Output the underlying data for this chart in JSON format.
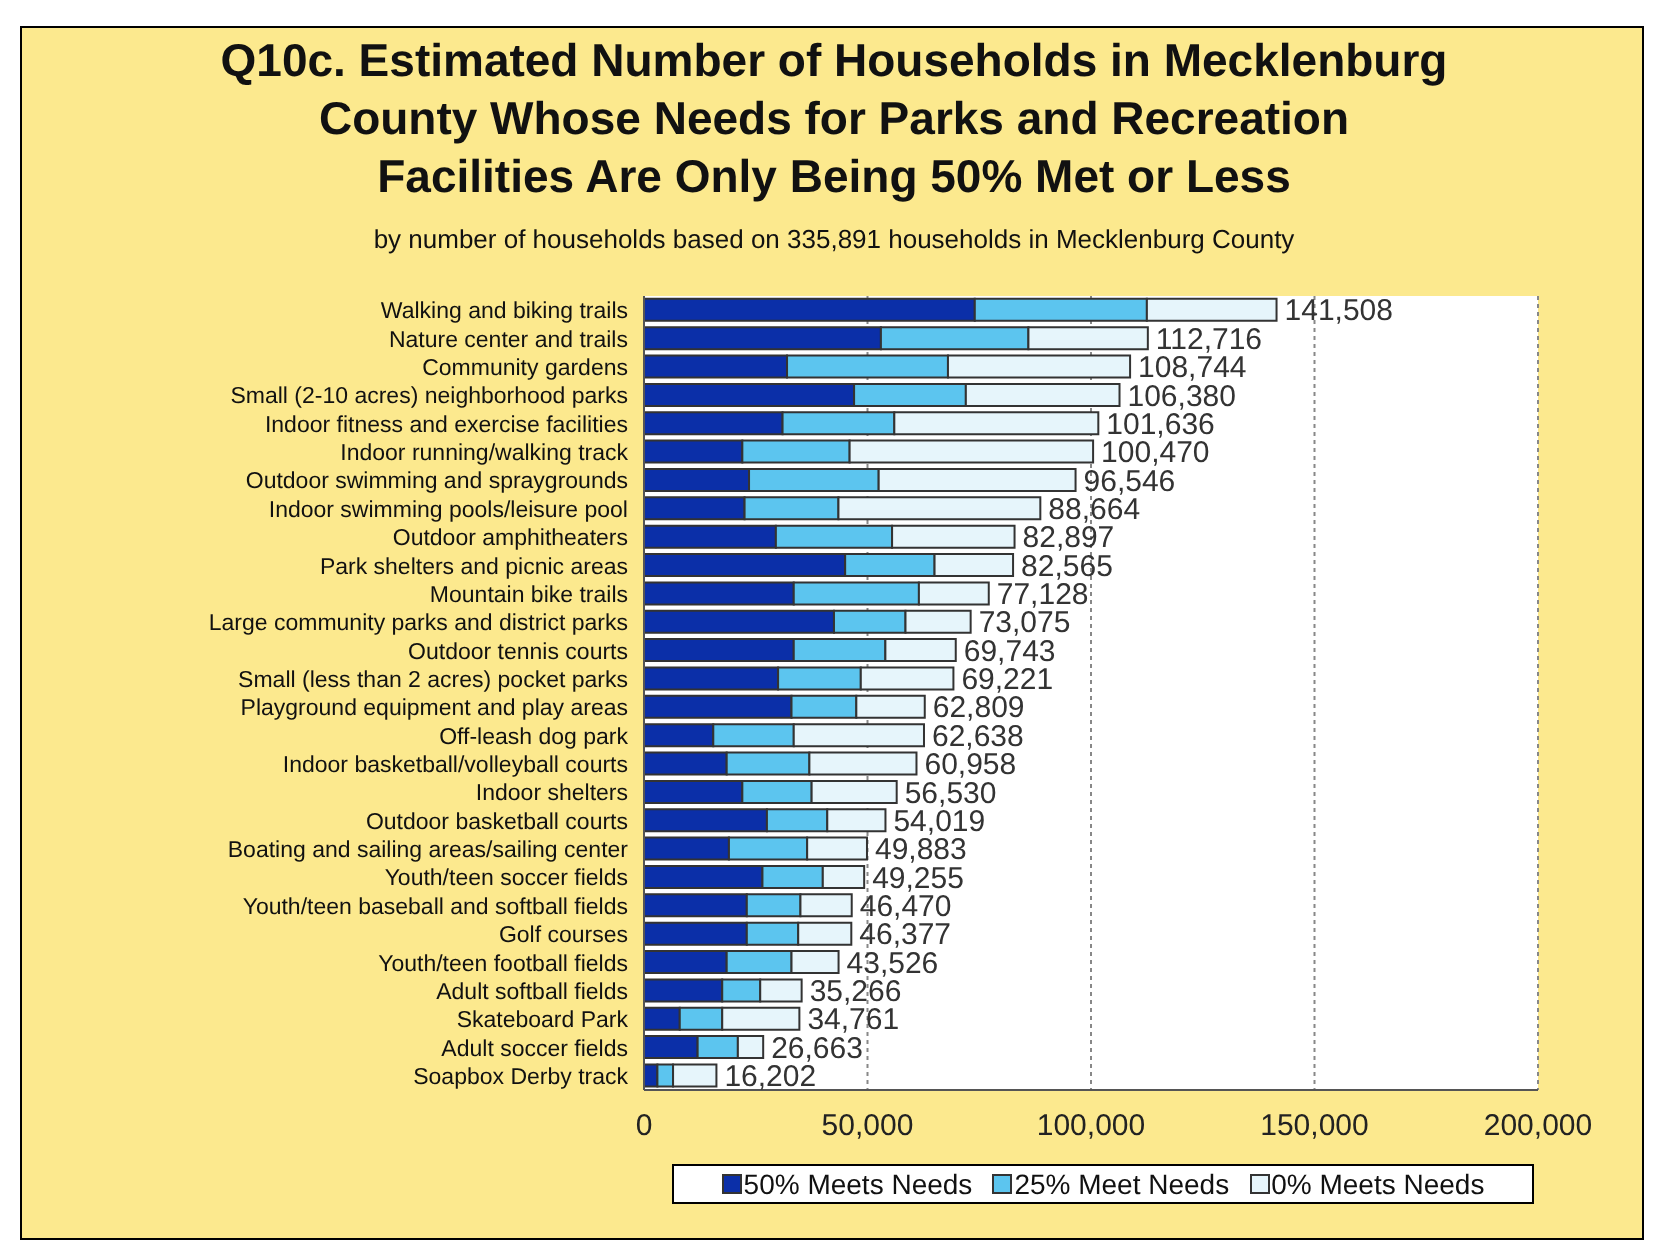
{
  "chart_data": {
    "type": "bar",
    "orientation": "horizontal",
    "stacked": true,
    "title": "Q10c. Estimated Number of Households in Mecklenburg\nCounty Whose Needs for Parks and Recreation\nFacilities Are Only Being 50% Met or Less",
    "subtitle": "by number of households based on 335,891 households in Mecklenburg County",
    "categories": [
      "Walking and biking trails",
      "Nature center and trails",
      "Community gardens",
      "Small (2-10 acres) neighborhood parks",
      "Indoor fitness and exercise facilities",
      "Indoor running/walking track",
      "Outdoor swimming and spraygrounds",
      "Indoor swimming pools/leisure pool",
      "Outdoor amphitheaters",
      "Park shelters and picnic areas",
      "Mountain bike trails",
      "Large community parks and district parks",
      "Outdoor tennis courts",
      "Small (less than 2 acres) pocket parks",
      "Playground equipment and play areas",
      "Off-leash dog park",
      "Indoor basketball/volleyball courts",
      "Indoor shelters",
      "Outdoor basketball courts",
      "Boating and sailing areas/sailing center",
      "Youth/teen soccer fields",
      "Youth/teen baseball and softball fields",
      "Golf courses",
      "Youth/teen football fields",
      "Adult softball fields",
      "Skateboard Park",
      "Adult soccer fields",
      "Soapbox Derby track"
    ],
    "series": [
      {
        "name": "50% Meets Needs",
        "color": "#0b2fa8",
        "values": [
          74000,
          53000,
          32000,
          47000,
          31000,
          22000,
          23500,
          22500,
          29500,
          45000,
          33500,
          42500,
          33500,
          30000,
          33000,
          15500,
          18500,
          22000,
          27500,
          19000,
          26500,
          23000,
          23000,
          18500,
          17500,
          8000,
          12000,
          3000
        ]
      },
      {
        "name": "25% Meet Needs",
        "color": "#5cc5ef",
        "values": [
          38500,
          33000,
          36000,
          25000,
          25000,
          24000,
          29000,
          21000,
          26000,
          20000,
          28000,
          16000,
          20500,
          18500,
          14500,
          18000,
          18500,
          15500,
          13500,
          17500,
          13500,
          12000,
          11500,
          14500,
          8500,
          9500,
          9000,
          3500
        ]
      },
      {
        "name": "0% Meets Needs",
        "color": "#e6f5fb",
        "values": [
          29008,
          26716,
          40744,
          34380,
          45636,
          54470,
          44046,
          45164,
          27397,
          17565,
          15628,
          14575,
          15743,
          20721,
          15309,
          29138,
          23958,
          19030,
          13019,
          13383,
          9255,
          11470,
          11877,
          10526,
          9266,
          17261,
          5663,
          9702
        ]
      }
    ],
    "totals": [
      "141,508",
      "112,716",
      "108,744",
      "106,380",
      "101,636",
      "100,470",
      "96,546",
      "88,664",
      "82,897",
      "82,565",
      "77,128",
      "73,075",
      "69,743",
      "69,221",
      "62,809",
      "62,638",
      "60,958",
      "56,530",
      "54,019",
      "49,883",
      "49,255",
      "46,470",
      "46,377",
      "43,526",
      "35,266",
      "34,761",
      "26,663",
      "16,202"
    ],
    "xlim": [
      0,
      200000
    ],
    "xticks": [
      0,
      {
        "value": 50000,
        "label": "50,000"
      },
      {
        "value": 100000,
        "label": "100,000"
      },
      {
        "value": 150000,
        "label": "150,000"
      },
      {
        "value": 200000,
        "label": "200,000"
      }
    ],
    "grid": "x",
    "legend": "bottom"
  }
}
